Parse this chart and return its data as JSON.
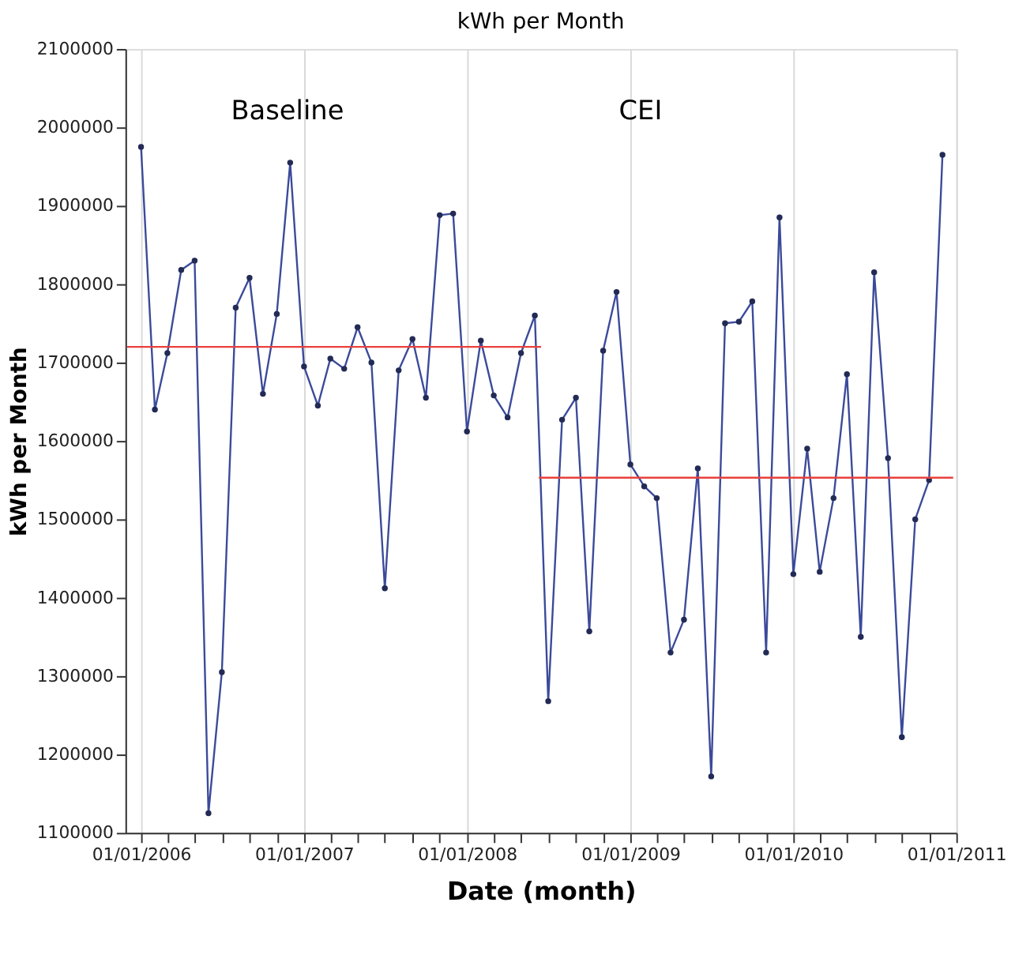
{
  "chart_data": {
    "type": "line",
    "title": "kWh per Month",
    "xlabel": "Date (month)",
    "ylabel": "kWh per Month",
    "annotations": [
      "Baseline",
      "CEI"
    ],
    "x": [
      "2006-01",
      "2006-02",
      "2006-03",
      "2006-04",
      "2006-05",
      "2006-06",
      "2006-07",
      "2006-08",
      "2006-09",
      "2006-10",
      "2006-11",
      "2006-12",
      "2007-01",
      "2007-02",
      "2007-03",
      "2007-04",
      "2007-05",
      "2007-06",
      "2007-07",
      "2007-08",
      "2007-09",
      "2007-10",
      "2007-11",
      "2007-12",
      "2008-01",
      "2008-02",
      "2008-03",
      "2008-04",
      "2008-05",
      "2008-06",
      "2008-07",
      "2008-08",
      "2008-09",
      "2008-10",
      "2008-11",
      "2008-12",
      "2009-01",
      "2009-02",
      "2009-03",
      "2009-04",
      "2009-05",
      "2009-06",
      "2009-07",
      "2009-08",
      "2009-09",
      "2009-10",
      "2009-11",
      "2009-12",
      "2010-01",
      "2010-02",
      "2010-03",
      "2010-04",
      "2010-05",
      "2010-06",
      "2010-07",
      "2010-08",
      "2010-09",
      "2010-10",
      "2010-11",
      "2010-12"
    ],
    "series": [
      {
        "color": "#3b4a9a",
        "values": [
          1975000,
          1640000,
          1712000,
          1818000,
          1830000,
          1125000,
          1305000,
          1770000,
          1808000,
          1660000,
          1762000,
          1955000,
          1695000,
          1645000,
          1705000,
          1692000,
          1745000,
          1700000,
          1412000,
          1690000,
          1730000,
          1655000,
          1888000,
          1890000,
          1612000,
          1728000,
          1658000,
          1630000,
          1712000,
          1760000,
          1268000,
          1627000,
          1655000,
          1357000,
          1715000,
          1790000,
          1570000,
          1542000,
          1527000,
          1330000,
          1372000,
          1565000,
          1172000,
          1750000,
          1752000,
          1778000,
          1330000,
          1885000,
          1430000,
          1590000,
          1433000,
          1527000,
          1685000,
          1350000,
          1815000,
          1578000,
          1222000,
          1500000,
          1550000,
          1965000
        ]
      },
      {
        "type": "line",
        "marker": "none",
        "color": "#e8413c",
        "x": [
          "2005-12-01",
          "2008-06-15"
        ],
        "values": [
          1720000,
          1720000
        ]
      },
      {
        "type": "line",
        "marker": "none",
        "color": "#e8413c",
        "x": [
          "2008-06-10",
          "2010-12-25"
        ],
        "values": [
          1553000,
          1553000
        ]
      }
    ],
    "marker": "circle",
    "line_style": "solid",
    "grid": "x",
    "xlim": [
      "2005-11-27",
      "2011-01-01"
    ],
    "xticks": [
      {
        "value": "2006-01-01",
        "label": "01/01/2006"
      },
      {
        "value": "2006-03-01",
        "label": null
      },
      {
        "value": "2006-05-01",
        "label": null
      },
      {
        "value": "2006-07-01",
        "label": null
      },
      {
        "value": "2006-09-01",
        "label": null
      },
      {
        "value": "2006-11-01",
        "label": null
      },
      {
        "value": "2007-01-01",
        "label": "01/01/2007"
      },
      {
        "value": "2007-03-01",
        "label": null
      },
      {
        "value": "2007-05-01",
        "label": null
      },
      {
        "value": "2007-07-01",
        "label": null
      },
      {
        "value": "2007-09-01",
        "label": null
      },
      {
        "value": "2007-11-01",
        "label": null
      },
      {
        "value": "2008-01-01",
        "label": "01/01/2008"
      },
      {
        "value": "2008-03-01",
        "label": null
      },
      {
        "value": "2008-05-01",
        "label": null
      },
      {
        "value": "2008-07-01",
        "label": null
      },
      {
        "value": "2008-09-01",
        "label": null
      },
      {
        "value": "2008-11-01",
        "label": null
      },
      {
        "value": "2009-01-01",
        "label": "01/01/2009"
      },
      {
        "value": "2009-03-01",
        "label": null
      },
      {
        "value": "2009-05-01",
        "label": null
      },
      {
        "value": "2009-07-01",
        "label": null
      },
      {
        "value": "2009-09-01",
        "label": null
      },
      {
        "value": "2009-11-01",
        "label": null
      },
      {
        "value": "2010-01-01",
        "label": "01/01/2010"
      },
      {
        "value": "2010-03-01",
        "label": null
      },
      {
        "value": "2010-05-01",
        "label": null
      },
      {
        "value": "2010-07-01",
        "label": null
      },
      {
        "value": "2010-09-01",
        "label": null
      },
      {
        "value": "2010-11-01",
        "label": null
      },
      {
        "value": "2011-01-01",
        "label": "01/01/2011"
      }
    ],
    "ylim": [
      1100000,
      2100000
    ],
    "yticks": [
      1100000,
      1200000,
      1300000,
      1400000,
      1500000,
      1600000,
      1700000,
      1800000,
      1900000,
      2000000,
      2100000
    ]
  }
}
